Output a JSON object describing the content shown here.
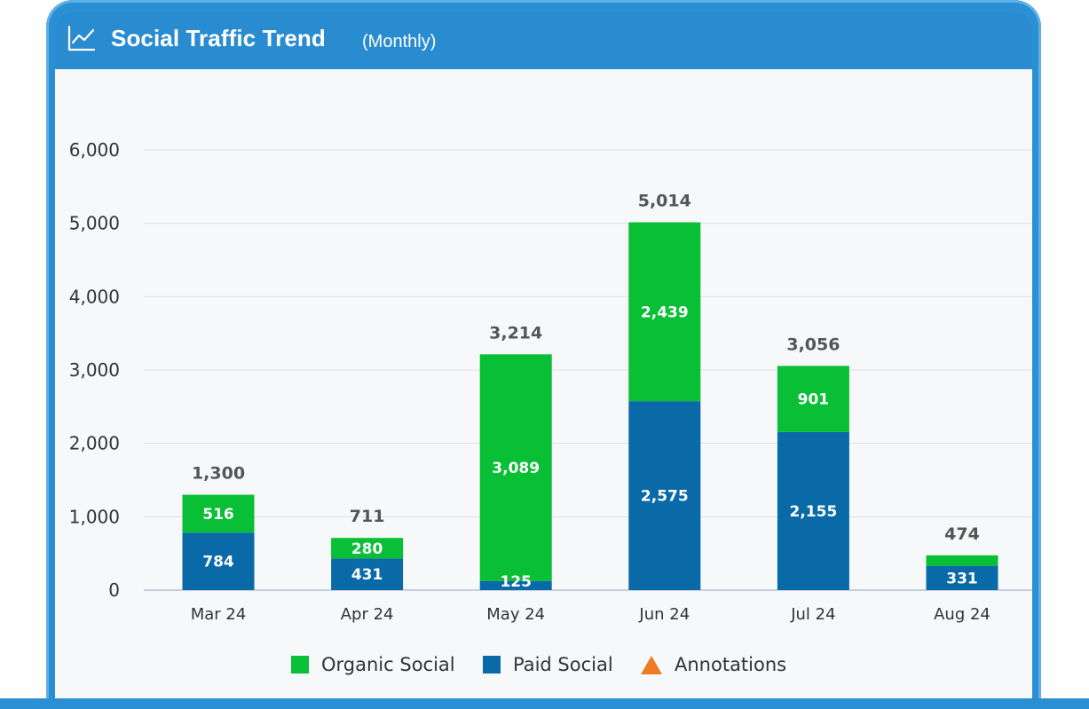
{
  "header": {
    "icon": "line-chart-icon",
    "title": "Social Traffic Trend",
    "subtitle": "(Monthly)"
  },
  "colors": {
    "organic": "#09bf35",
    "paid": "#0a6aa8",
    "annotation": "#ee7a22",
    "header": "#2a8cd0"
  },
  "chart_data": {
    "type": "bar",
    "stacked": true,
    "title": "Social Traffic Trend (Monthly)",
    "categories": [
      "Mar 24",
      "Apr 24",
      "May 24",
      "Jun 24",
      "Jul 24",
      "Aug 24"
    ],
    "series": [
      {
        "name": "Paid Social",
        "values": [
          784,
          431,
          125,
          2575,
          2155,
          331
        ],
        "labels": [
          "784",
          "431",
          "125",
          "2,575",
          "2,155",
          "331"
        ]
      },
      {
        "name": "Organic Social",
        "values": [
          516,
          280,
          3089,
          2439,
          901,
          143
        ],
        "labels": [
          "516",
          "280",
          "3,089",
          "2,439",
          "901",
          ""
        ]
      }
    ],
    "totals": [
      1300,
      711,
      3214,
      5014,
      3056,
      474
    ],
    "total_labels": [
      "1,300",
      "711",
      "3,214",
      "5,014",
      "3,056",
      "474"
    ],
    "ylim": [
      0,
      6000
    ],
    "yticks": [
      0,
      1000,
      2000,
      3000,
      4000,
      5000,
      6000
    ],
    "ytick_labels": [
      "0",
      "1,000",
      "2,000",
      "3,000",
      "4,000",
      "5,000",
      "6,000"
    ],
    "grid": true,
    "legend": [
      "Organic Social",
      "Paid Social",
      "Annotations"
    ],
    "legend_position": "bottom"
  }
}
